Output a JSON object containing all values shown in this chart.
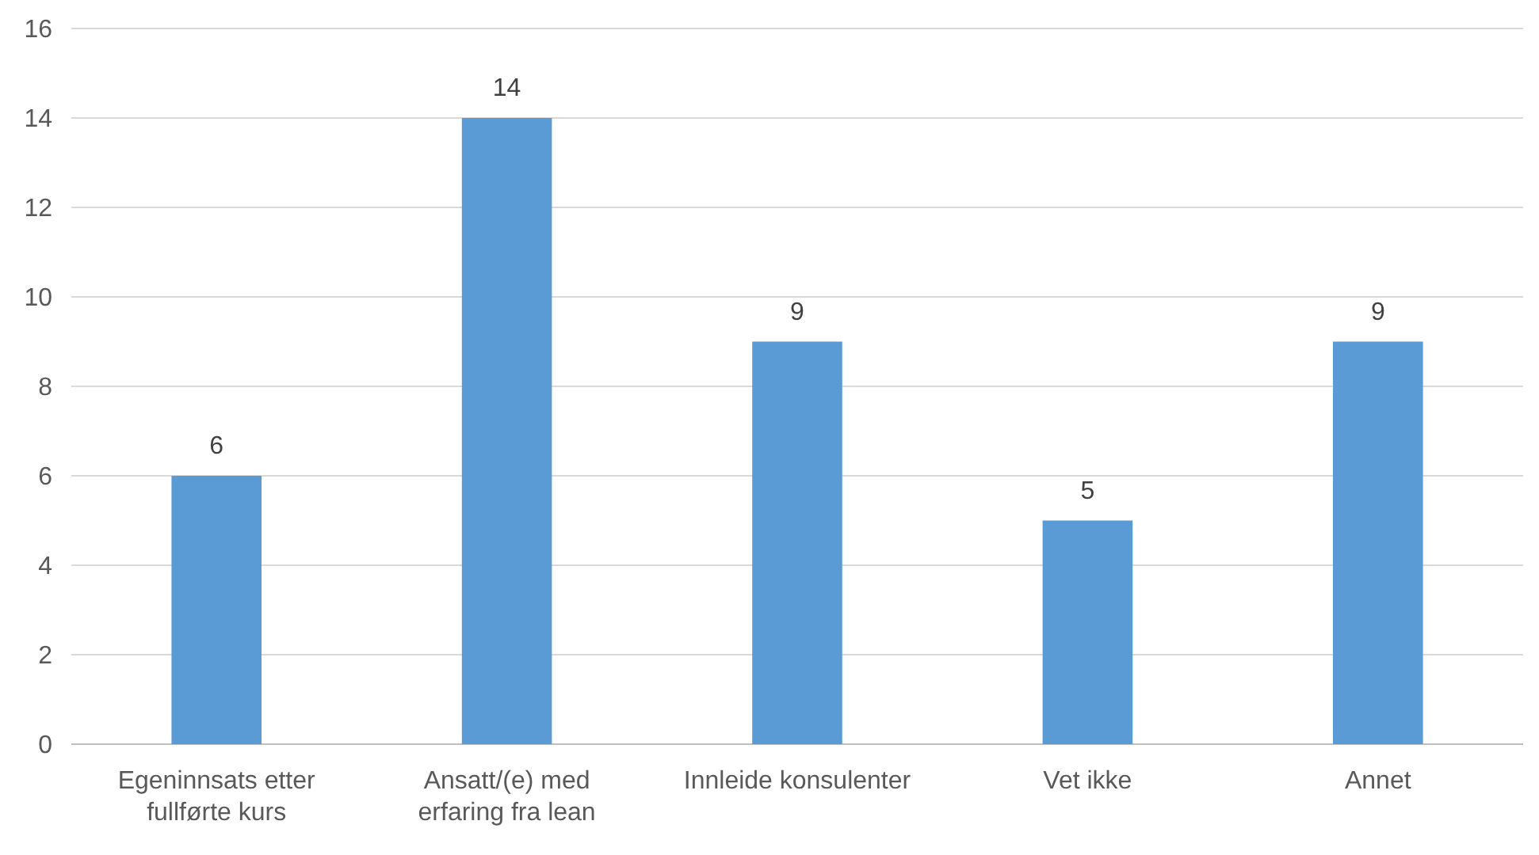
{
  "chart_data": {
    "type": "bar",
    "categories": [
      "Egeninnsats etter fullførte kurs",
      "Ansatt/(e) med erfaring fra lean",
      "Innleide konsulenter",
      "Vet ikke",
      "Annet"
    ],
    "values": [
      6,
      14,
      9,
      5,
      9
    ],
    "color": "#5b9bd5",
    "ylim": [
      0,
      16
    ],
    "yticks": [
      0,
      2,
      4,
      6,
      8,
      10,
      12,
      14,
      16
    ],
    "grid": "y",
    "data_labels": true
  }
}
